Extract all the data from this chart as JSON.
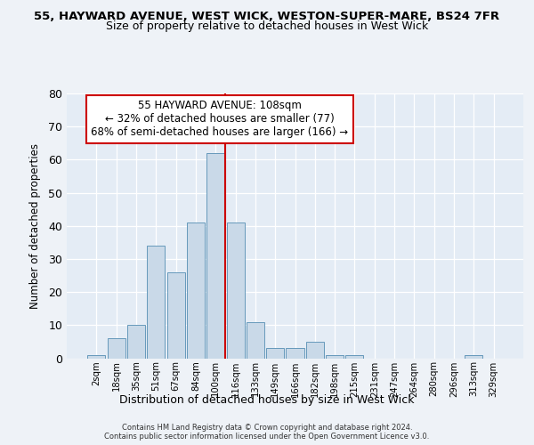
{
  "title1": "55, HAYWARD AVENUE, WEST WICK, WESTON-SUPER-MARE, BS24 7FR",
  "title2": "Size of property relative to detached houses in West Wick",
  "xlabel": "Distribution of detached houses by size in West Wick",
  "ylabel": "Number of detached properties",
  "bin_labels": [
    "2sqm",
    "18sqm",
    "35sqm",
    "51sqm",
    "67sqm",
    "84sqm",
    "100sqm",
    "116sqm",
    "133sqm",
    "149sqm",
    "166sqm",
    "182sqm",
    "198sqm",
    "215sqm",
    "231sqm",
    "247sqm",
    "264sqm",
    "280sqm",
    "296sqm",
    "313sqm",
    "329sqm"
  ],
  "bar_heights": [
    1,
    6,
    10,
    34,
    26,
    41,
    62,
    41,
    11,
    3,
    3,
    5,
    1,
    1,
    0,
    0,
    0,
    0,
    0,
    1,
    0
  ],
  "bar_color": "#c9d9e8",
  "bar_edgecolor": "#6699bb",
  "property_label": "55 HAYWARD AVENUE: 108sqm",
  "annotation_line1": "← 32% of detached houses are smaller (77)",
  "annotation_line2": "68% of semi-detached houses are larger (166) →",
  "vline_color": "#cc0000",
  "annotation_box_edgecolor": "#cc0000",
  "ylim": [
    0,
    80
  ],
  "yticks": [
    0,
    10,
    20,
    30,
    40,
    50,
    60,
    70,
    80
  ],
  "vline_index": 6.5,
  "footer1": "Contains HM Land Registry data © Crown copyright and database right 2024.",
  "footer2": "Contains public sector information licensed under the Open Government Licence v3.0.",
  "bg_color": "#eef2f7",
  "plot_bg_color": "#e4ecf5"
}
